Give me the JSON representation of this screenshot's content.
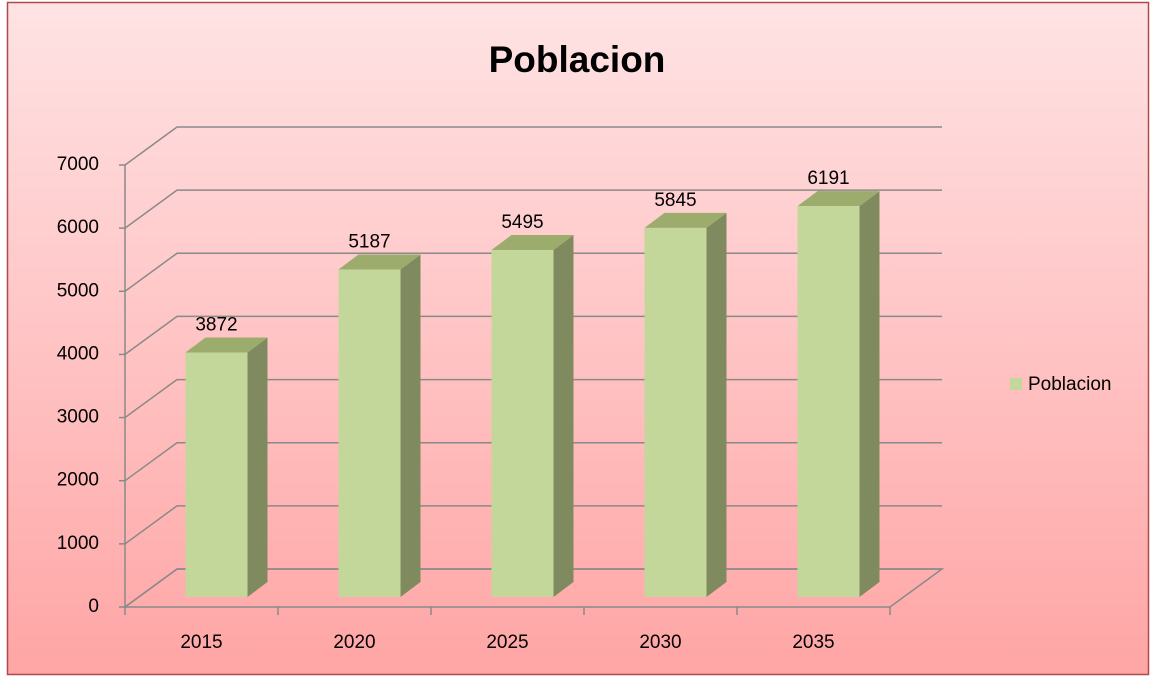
{
  "chart_data": {
    "type": "bar3d",
    "title": "Poblacion",
    "categories": [
      "2015",
      "2020",
      "2025",
      "2030",
      "2035"
    ],
    "series": [
      {
        "name": "Poblacion",
        "color": "#c4d79b",
        "values": [
          3872,
          5187,
          5495,
          5845,
          6191
        ]
      }
    ],
    "ylim": [
      0,
      7000
    ],
    "yticks": [
      0,
      1000,
      2000,
      3000,
      4000,
      5000,
      6000,
      7000
    ],
    "grid": true,
    "legend": "right"
  }
}
